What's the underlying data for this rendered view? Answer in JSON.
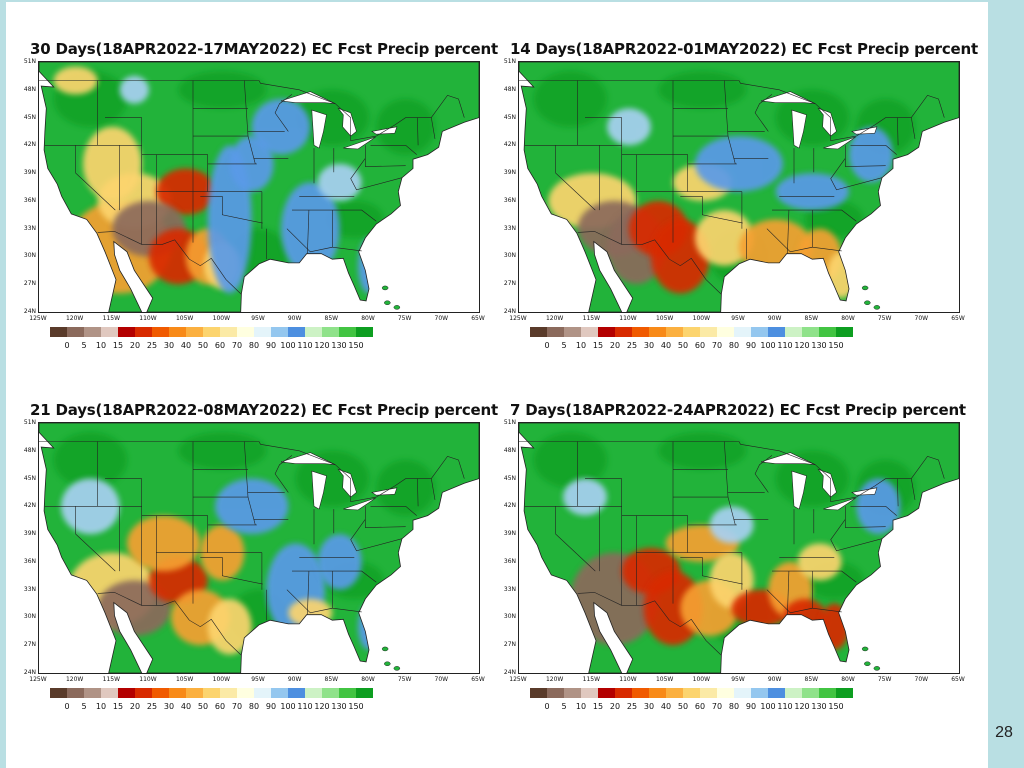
{
  "page_number": "28",
  "panels": [
    {
      "title": "30 Days(18APR2022-17MAY2022) EC Fcst Precip percent",
      "scenario": "30"
    },
    {
      "title": "14 Days(18APR2022-01MAY2022) EC Fcst Precip percent",
      "scenario": "14"
    },
    {
      "title": "21 Days(18APR2022-08MAY2022) EC Fcst Precip percent",
      "scenario": "21"
    },
    {
      "title": "7 Days(18APR2022-24APR2022) EC Fcst Precip percent",
      "scenario": "7"
    }
  ],
  "lat_labels": [
    "51N",
    "48N",
    "45N",
    "42N",
    "39N",
    "36N",
    "33N",
    "30N",
    "27N",
    "24N"
  ],
  "lon_labels": [
    "125W",
    "120W",
    "115W",
    "110W",
    "105W",
    "100W",
    "95W",
    "90W",
    "85W",
    "80W",
    "75W",
    "70W",
    "65W"
  ],
  "colorbar_labels": [
    "0",
    "5",
    "10",
    "15",
    "20",
    "25",
    "30",
    "40",
    "50",
    "60",
    "70",
    "80",
    "90",
    "100",
    "110",
    "120",
    "130",
    "150"
  ],
  "colorbar_colors": [
    "#5a3b2a",
    "#8b6a5c",
    "#b09386",
    "#e0c8bf",
    "#b30000",
    "#d82a00",
    "#f05a00",
    "#f88a18",
    "#fbb040",
    "#fcd46e",
    "#fbeaa6",
    "#ffffe0",
    "#e4f4fa",
    "#94c7ef",
    "#4d8fe0",
    "#cdf2c5",
    "#8fe28a",
    "#42c442",
    "#0d9e20"
  ],
  "colors": {
    "green": "#22b33a",
    "dark_green": "#0d9e20",
    "brown": "#8b6a5c",
    "red": "#d82a00",
    "orange": "#f5a030",
    "yellow": "#fcd46e",
    "blue": "#5a9ae8",
    "light_blue": "#a8d0f2"
  }
}
